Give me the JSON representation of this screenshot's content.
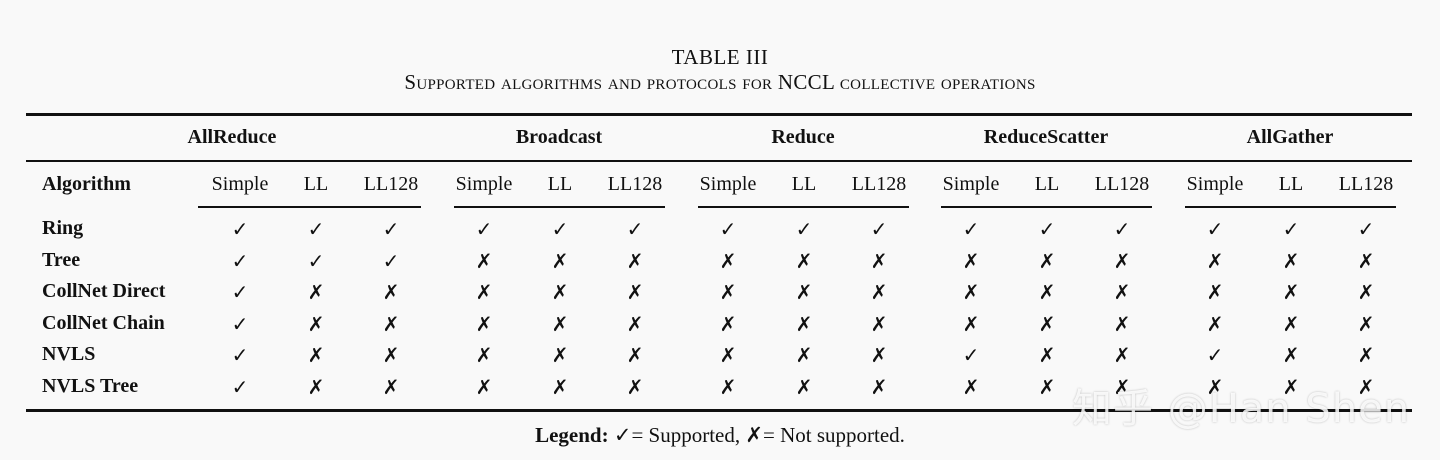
{
  "caption": {
    "label": "TABLE III",
    "title": "Supported algorithms and protocols for NCCL collective operations"
  },
  "header": {
    "algorithm_label": "Algorithm",
    "groups": [
      "AllReduce",
      "Broadcast",
      "Reduce",
      "ReduceScatter",
      "AllGather"
    ],
    "protocols": [
      "Simple",
      "LL",
      "LL128"
    ]
  },
  "symbols": {
    "yes": "✓",
    "no": "✗"
  },
  "rows": [
    {
      "label": "Ring",
      "cells": [
        1,
        1,
        1,
        1,
        1,
        1,
        1,
        1,
        1,
        1,
        1,
        1,
        1,
        1,
        1
      ]
    },
    {
      "label": "Tree",
      "cells": [
        1,
        1,
        1,
        0,
        0,
        0,
        0,
        0,
        0,
        0,
        0,
        0,
        0,
        0,
        0
      ]
    },
    {
      "label": "CollNet Direct",
      "cells": [
        1,
        0,
        0,
        0,
        0,
        0,
        0,
        0,
        0,
        0,
        0,
        0,
        0,
        0,
        0
      ]
    },
    {
      "label": "CollNet Chain",
      "cells": [
        1,
        0,
        0,
        0,
        0,
        0,
        0,
        0,
        0,
        0,
        0,
        0,
        0,
        0,
        0
      ]
    },
    {
      "label": "NVLS",
      "cells": [
        1,
        0,
        0,
        0,
        0,
        0,
        0,
        0,
        0,
        1,
        0,
        0,
        1,
        0,
        0
      ]
    },
    {
      "label": "NVLS Tree",
      "cells": [
        1,
        0,
        0,
        0,
        0,
        0,
        0,
        0,
        0,
        0,
        0,
        0,
        0,
        0,
        0
      ]
    }
  ],
  "legend": {
    "title": "Legend:",
    "yes_text": "= Supported,",
    "no_text": "= Not supported."
  },
  "watermark": "知乎 @Han Shen"
}
